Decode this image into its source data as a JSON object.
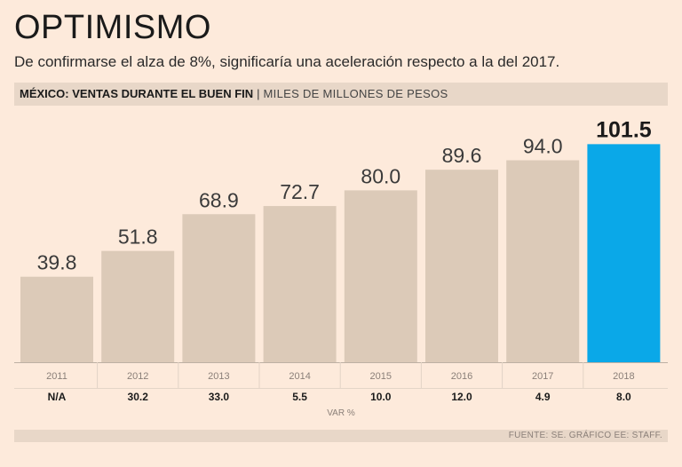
{
  "title": "OPTIMISMO",
  "subtitle": "De confirmarse el alza de 8%, significaría una aceleración respecto a la del 2017.",
  "header": {
    "label": "MÉXICO: VENTAS DURANTE EL BUEN FIN",
    "separator": "|",
    "unit": "MILES DE MILLONES DE PESOS"
  },
  "chart_data": {
    "type": "bar",
    "categories": [
      "2011",
      "2012",
      "2013",
      "2014",
      "2015",
      "2016",
      "2017",
      "2018"
    ],
    "values": [
      39.8,
      51.8,
      68.9,
      72.7,
      80.0,
      89.6,
      94.0,
      101.5
    ],
    "value_labels": [
      "39.8",
      "51.8",
      "68.9",
      "72.7",
      "80.0",
      "89.6",
      "94.0",
      "101.5"
    ],
    "highlight_index": 7,
    "ylim": [
      0,
      110
    ],
    "var_label": "VAR %",
    "var_values": [
      "N/A",
      "30.2",
      "33.0",
      "5.5",
      "10.0",
      "12.0",
      "4.9",
      "8.0"
    ],
    "colors": {
      "bar": "#dccab8",
      "highlight": "#0aa8e8",
      "axis": "#bdb0a3"
    }
  },
  "source": "FUENTE: SE. GRÁFICO EE: STAFF."
}
